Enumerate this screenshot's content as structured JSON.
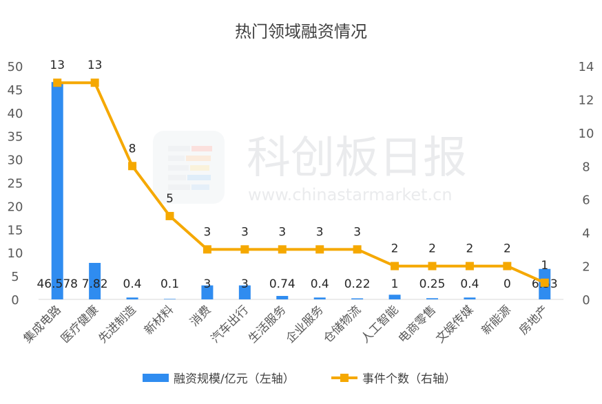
{
  "chart_data": {
    "type": "bar+line",
    "title": "热门领域融资情况",
    "categories": [
      "集成电路",
      "医疗健康",
      "先进制造",
      "新材料",
      "消费",
      "汽车出行",
      "生活服务",
      "企业服务",
      "仓储物流",
      "人工智能",
      "电商零售",
      "文娱传媒",
      "新能源",
      "房地产"
    ],
    "bar_series": {
      "name": "融资规模/亿元（左轴）",
      "values": [
        46.578,
        7.82,
        0.4,
        0.1,
        3,
        3,
        0.74,
        0.4,
        0.22,
        1,
        0.25,
        0.4,
        0,
        6.53
      ],
      "labels": [
        "46.578",
        "7.82",
        "0.4",
        "0.1",
        "3",
        "3",
        "0.74",
        "0.4",
        "0.22",
        "1",
        "0.25",
        "0.4",
        "0",
        "6.53"
      ],
      "color": "#2f8cf0"
    },
    "line_series": {
      "name": "事件个数（右轴）",
      "values": [
        13,
        13,
        8,
        5,
        3,
        3,
        3,
        3,
        3,
        2,
        2,
        2,
        2,
        1
      ],
      "labels": [
        "13",
        "13",
        "8",
        "5",
        "3",
        "3",
        "3",
        "3",
        "3",
        "2",
        "2",
        "2",
        "2",
        "1"
      ],
      "color": "#f5a800"
    },
    "y_left": {
      "min": 0,
      "max": 50,
      "ticks": [
        "0",
        "5",
        "10",
        "15",
        "20",
        "25",
        "30",
        "35",
        "40",
        "45",
        "50"
      ]
    },
    "y_right": {
      "min": 0,
      "max": 14,
      "ticks": [
        "0",
        "2",
        "4",
        "6",
        "8",
        "10",
        "12",
        "14"
      ]
    },
    "grid": false,
    "legend_position": "bottom"
  },
  "watermark": {
    "name": "科创板日报",
    "url": "www.chinastarmarket.cn"
  }
}
